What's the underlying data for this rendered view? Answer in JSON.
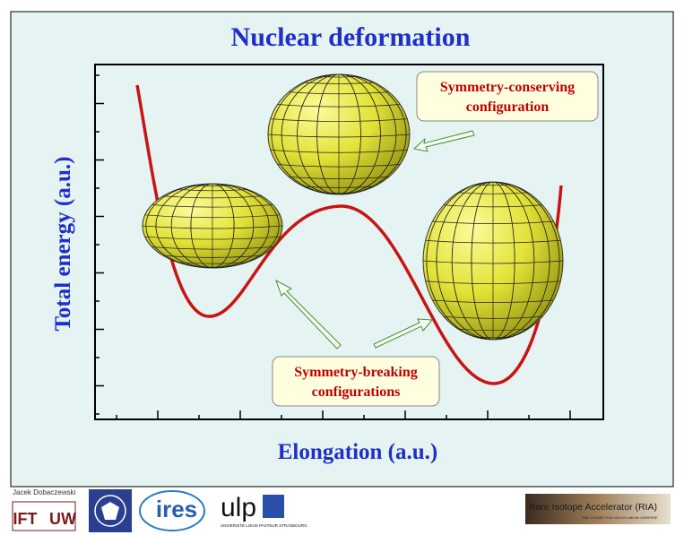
{
  "slide": {
    "title": "Nuclear deformation",
    "y_axis_label": "Total energy (a.u.)",
    "x_axis_label": "Elongation (a.u.)",
    "callouts": [
      {
        "lines": [
          "Symmetry-conserving",
          "configuration"
        ]
      },
      {
        "lines": [
          "Symmetry-breaking",
          "configurations"
        ]
      }
    ],
    "author": "Jacek Dobaczewski"
  },
  "logos": {
    "ift": [
      "IFT",
      "UW"
    ],
    "ires": "ires",
    "ulp": "ulp",
    "ulp_sub": "UNIVERSITÉ LOUIS PASTEUR STRASBOURG",
    "ria": "Rare Isotope Accelerator (RIA)",
    "ria_sub": "RIA: CONNECTING NUCLEI with the UNIVERSE"
  }
}
